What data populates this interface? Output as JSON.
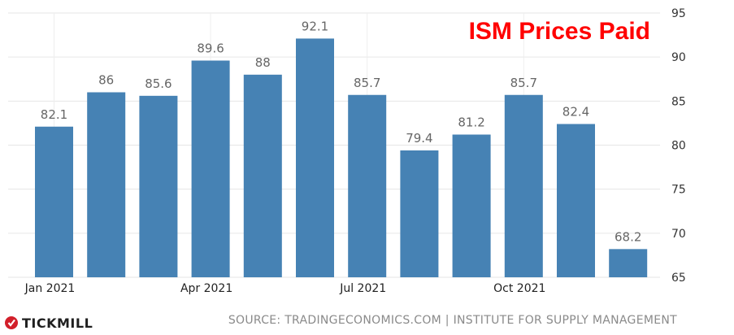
{
  "brand": {
    "name": "TICKMILL",
    "logo_icon": "tickmill-logo-icon",
    "logo_color": "#d21f2a"
  },
  "source": "SOURCE: TRADINGECONOMICS.COM | INSTITUTE FOR SUPPLY MANAGEMENT",
  "colors": {
    "bar": "#4682b4",
    "title": "#ff0000"
  },
  "chart_data": {
    "type": "bar",
    "title": "ISM Prices Paid",
    "categories": [
      "Jan 2021",
      "Feb 2021",
      "Mar 2021",
      "Apr 2021",
      "May 2021",
      "Jun 2021",
      "Jul 2021",
      "Aug 2021",
      "Sep 2021",
      "Oct 2021",
      "Nov 2021",
      "Dec 2021"
    ],
    "values": [
      82.1,
      86,
      85.6,
      89.6,
      88,
      92.1,
      85.7,
      79.4,
      81.2,
      85.7,
      82.4,
      68.2
    ],
    "value_labels": [
      "82.1",
      "86",
      "85.6",
      "89.6",
      "88",
      "92.1",
      "85.7",
      "79.4",
      "81.2",
      "85.7",
      "82.4",
      "68.2"
    ],
    "x_tick_labels": [
      "Jan 2021",
      "Apr 2021",
      "Jul 2021",
      "Oct 2021"
    ],
    "x_tick_categories": [
      "Jan 2021",
      "Apr 2021",
      "Jul 2021",
      "Oct 2021"
    ],
    "y_ticks": [
      65,
      70,
      75,
      80,
      85,
      90,
      95
    ],
    "ylim": [
      65,
      95
    ],
    "y_axis_side": "right",
    "xlabel": "",
    "ylabel": "",
    "grid": true
  }
}
